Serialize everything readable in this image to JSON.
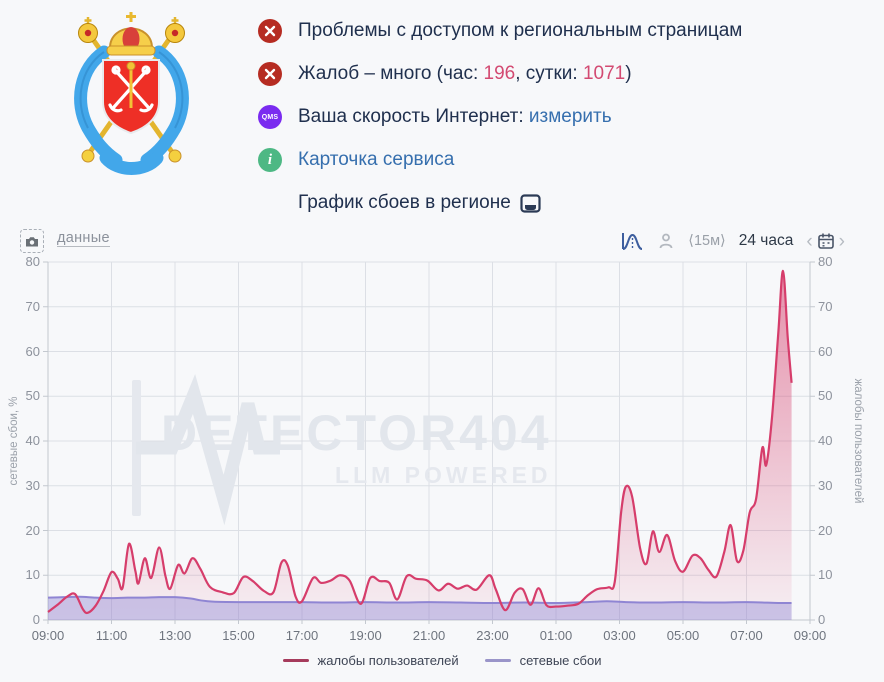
{
  "status": {
    "access_problems": "Проблемы с доступом к региональным страницам",
    "complaints": {
      "prefix": "Жалоб – много (час: ",
      "hour": "196",
      "mid": ", сутки: ",
      "day": "1071",
      "suffix": ")"
    },
    "speed": {
      "label": "Ваша скорость Интернет: ",
      "link": "измерить",
      "badge": "QMS"
    },
    "service_card": {
      "link": "Карточка сервиса",
      "badge": "i"
    },
    "graph_title": "График сбоев в регионе"
  },
  "toolbar": {
    "data_link": "данные",
    "interval": "⟨15м⟩",
    "range": "24 часа",
    "prev": "‹",
    "next": "›"
  },
  "watermark": {
    "title": "DETECTOR404",
    "subtitle": "LLM POWERED"
  },
  "colors": {
    "complaints_line": "#d63d6b",
    "network_line": "#8f85d3",
    "legend_complaints": "#a63b5c",
    "legend_network": "#9a95c9",
    "link_blue": "#366fae",
    "status_red": "#b62c22",
    "badge_purple": "#7a2bf0",
    "badge_green": "#4db884"
  },
  "chart_data": {
    "type": "area",
    "title": "График сбоев в регионе",
    "x_hours": [
      0,
      24
    ],
    "x_axis": {
      "tick_labels": [
        "09:00",
        "11:00",
        "13:00",
        "15:00",
        "17:00",
        "19:00",
        "21:00",
        "23:00",
        "01:00",
        "03:00",
        "05:00",
        "07:00",
        "09:00"
      ]
    },
    "y_left": {
      "label": "сетевые сбои, %",
      "ticks": [
        0,
        10,
        20,
        30,
        40,
        50,
        60,
        70,
        80
      ]
    },
    "y_right": {
      "label": "жалобы пользователей",
      "ticks": [
        0,
        10,
        20,
        30,
        40,
        50,
        60,
        70,
        80
      ]
    },
    "ylim": [
      0,
      80
    ],
    "grid": true,
    "legend_position": "bottom",
    "series": [
      {
        "name": "жалобы пользователей",
        "color": "#d63d6b",
        "legend_color": "#a63b5c",
        "points": [
          [
            0,
            1.8
          ],
          [
            0.3,
            3.4
          ],
          [
            0.6,
            5.2
          ],
          [
            0.85,
            5.8
          ],
          [
            1.1,
            2.4
          ],
          [
            1.25,
            1.6
          ],
          [
            1.5,
            3.2
          ],
          [
            1.75,
            6.5
          ],
          [
            2.0,
            10.7
          ],
          [
            2.2,
            9.2
          ],
          [
            2.35,
            7.2
          ],
          [
            2.55,
            17.0
          ],
          [
            2.75,
            11.0
          ],
          [
            2.85,
            8.2
          ],
          [
            3.05,
            13.8
          ],
          [
            3.25,
            9.4
          ],
          [
            3.5,
            16.2
          ],
          [
            3.7,
            9.8
          ],
          [
            3.85,
            7.0
          ],
          [
            4.1,
            12.3
          ],
          [
            4.3,
            10.4
          ],
          [
            4.55,
            13.8
          ],
          [
            4.8,
            11.4
          ],
          [
            5.1,
            7.4
          ],
          [
            5.5,
            6.2
          ],
          [
            5.85,
            6.0
          ],
          [
            6.15,
            9.6
          ],
          [
            6.45,
            8.7
          ],
          [
            6.8,
            6.5
          ],
          [
            7.1,
            6.2
          ],
          [
            7.35,
            12.8
          ],
          [
            7.55,
            12.2
          ],
          [
            7.8,
            5.2
          ],
          [
            8.0,
            4.2
          ],
          [
            8.35,
            9.4
          ],
          [
            8.6,
            8.3
          ],
          [
            8.9,
            8.8
          ],
          [
            9.2,
            10.0
          ],
          [
            9.5,
            8.8
          ],
          [
            9.85,
            3.6
          ],
          [
            10.15,
            9.4
          ],
          [
            10.45,
            8.7
          ],
          [
            10.75,
            8.3
          ],
          [
            11.0,
            4.6
          ],
          [
            11.3,
            9.8
          ],
          [
            11.6,
            9.2
          ],
          [
            11.95,
            8.8
          ],
          [
            12.3,
            6.6
          ],
          [
            12.6,
            8.1
          ],
          [
            12.9,
            7.0
          ],
          [
            13.2,
            7.7
          ],
          [
            13.5,
            6.8
          ],
          [
            13.9,
            10.0
          ],
          [
            14.1,
            6.9
          ],
          [
            14.4,
            2.2
          ],
          [
            14.7,
            6.1
          ],
          [
            14.95,
            6.9
          ],
          [
            15.2,
            3.4
          ],
          [
            15.45,
            7.1
          ],
          [
            15.7,
            3.3
          ],
          [
            16.0,
            3.0
          ],
          [
            16.35,
            3.2
          ],
          [
            16.7,
            3.6
          ],
          [
            17.0,
            5.5
          ],
          [
            17.3,
            6.9
          ],
          [
            17.65,
            7.3
          ],
          [
            17.85,
            8.5
          ],
          [
            18.05,
            24.0
          ],
          [
            18.2,
            29.8
          ],
          [
            18.4,
            27.5
          ],
          [
            18.65,
            16.0
          ],
          [
            18.85,
            12.6
          ],
          [
            19.05,
            19.8
          ],
          [
            19.25,
            15.2
          ],
          [
            19.5,
            19.0
          ],
          [
            19.75,
            13.2
          ],
          [
            20.0,
            10.8
          ],
          [
            20.3,
            14.4
          ],
          [
            20.55,
            13.8
          ],
          [
            20.8,
            11.2
          ],
          [
            21.05,
            9.7
          ],
          [
            21.3,
            15.2
          ],
          [
            21.5,
            21.2
          ],
          [
            21.7,
            13.2
          ],
          [
            21.9,
            15.5
          ],
          [
            22.1,
            24.0
          ],
          [
            22.3,
            27.0
          ],
          [
            22.5,
            38.5
          ],
          [
            22.62,
            34.6
          ],
          [
            22.8,
            45.0
          ],
          [
            23.0,
            64.0
          ],
          [
            23.15,
            78.0
          ],
          [
            23.3,
            63.0
          ],
          [
            23.42,
            53.0
          ]
        ]
      },
      {
        "name": "сетевые сбои",
        "color": "#8f85d3",
        "legend_color": "#9a95c9",
        "points": [
          [
            0,
            5.0
          ],
          [
            0.5,
            5.1
          ],
          [
            1.0,
            5.2
          ],
          [
            1.5,
            5.0
          ],
          [
            2.0,
            4.9
          ],
          [
            2.5,
            5.0
          ],
          [
            3.0,
            5.0
          ],
          [
            3.5,
            5.1
          ],
          [
            4.0,
            5.1
          ],
          [
            4.5,
            4.8
          ],
          [
            4.8,
            4.4
          ],
          [
            5.2,
            4.1
          ],
          [
            6.0,
            4.0
          ],
          [
            7.0,
            4.0
          ],
          [
            8.0,
            4.0
          ],
          [
            9.0,
            3.9
          ],
          [
            10.0,
            4.0
          ],
          [
            11.0,
            3.9
          ],
          [
            12.0,
            4.0
          ],
          [
            13.0,
            3.9
          ],
          [
            14.0,
            3.8
          ],
          [
            15.0,
            3.9
          ],
          [
            16.0,
            3.8
          ],
          [
            17.0,
            4.0
          ],
          [
            17.6,
            4.2
          ],
          [
            18.2,
            4.0
          ],
          [
            19.0,
            3.9
          ],
          [
            20.0,
            4.0
          ],
          [
            21.0,
            3.9
          ],
          [
            22.0,
            4.0
          ],
          [
            23.0,
            3.8
          ],
          [
            23.42,
            3.8
          ]
        ]
      }
    ]
  }
}
